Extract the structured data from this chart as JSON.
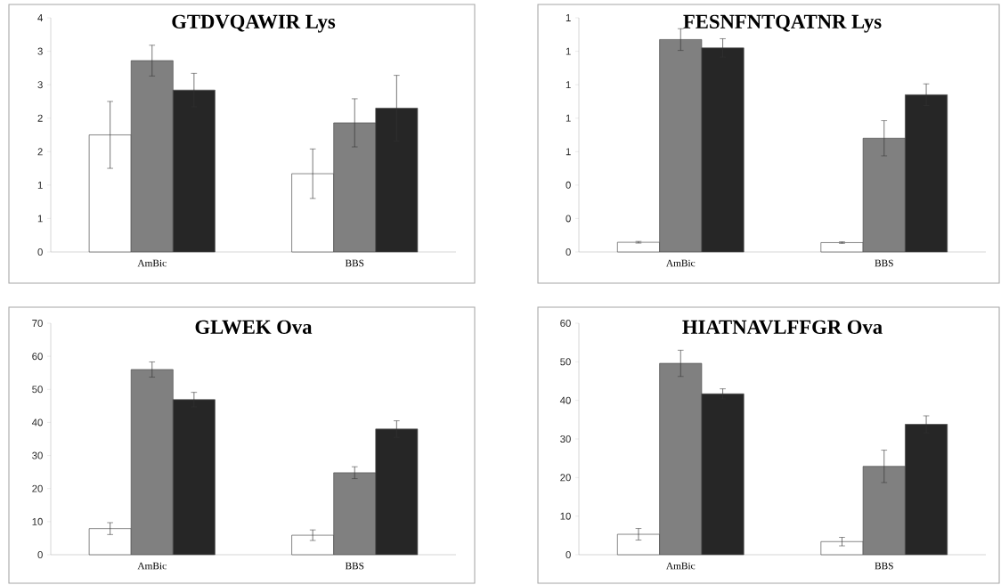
{
  "chart_data": [
    {
      "type": "bar",
      "title": "GTDVQAWIR Lys",
      "categories": [
        "AmBic",
        "BBS"
      ],
      "series": [
        {
          "color": "#ffffff",
          "values": [
            1.75,
            1.17
          ],
          "errors": [
            0.5,
            0.37
          ]
        },
        {
          "color": "#808080",
          "values": [
            2.86,
            1.93
          ],
          "errors": [
            0.23,
            0.36
          ]
        },
        {
          "color": "#262626",
          "values": [
            2.42,
            2.15
          ],
          "errors": [
            0.25,
            0.49
          ]
        }
      ],
      "ylim": [
        0,
        3.5
      ],
      "yticks": [
        0,
        {
          "value": 0.5,
          "label": "1"
        },
        1,
        {
          "value": 1.5,
          "label": "2"
        },
        2,
        {
          "value": 2.5,
          "label": "3"
        },
        3,
        {
          "value": 3.5,
          "label": "4"
        }
      ]
    },
    {
      "type": "bar",
      "title": "FESNFNTQATNR Lys",
      "categories": [
        "AmBic",
        "BBS"
      ],
      "series": [
        {
          "color": "#ffffff",
          "values": [
            0.058,
            0.056
          ],
          "errors": [
            0.005,
            0.005
          ]
        },
        {
          "color": "#808080",
          "values": [
            1.27,
            0.68
          ],
          "errors": [
            0.065,
            0.105
          ]
        },
        {
          "color": "#262626",
          "values": [
            1.22,
            0.94
          ],
          "errors": [
            0.055,
            0.065
          ]
        }
      ],
      "ylim": [
        0,
        1.4
      ],
      "yticks": [
        0,
        {
          "value": 0.2,
          "label": "0"
        },
        {
          "value": 0.4,
          "label": "0"
        },
        {
          "value": 0.6,
          "label": "1"
        },
        {
          "value": 0.8,
          "label": "1"
        },
        1,
        {
          "value": 1.2,
          "label": "1"
        },
        {
          "value": 1.4,
          "label": "1"
        }
      ]
    },
    {
      "type": "bar",
      "title": "GLWEK Ova",
      "categories": [
        "AmBic",
        "BBS"
      ],
      "series": [
        {
          "color": "#ffffff",
          "values": [
            7.9,
            5.9
          ],
          "errors": [
            1.8,
            1.6
          ]
        },
        {
          "color": "#808080",
          "values": [
            56.0,
            24.8
          ],
          "errors": [
            2.3,
            1.8
          ]
        },
        {
          "color": "#262626",
          "values": [
            46.9,
            38.0
          ],
          "errors": [
            2.2,
            2.5
          ]
        }
      ],
      "ylim": [
        0,
        70
      ],
      "yticks": [
        0,
        10,
        20,
        30,
        40,
        50,
        60,
        70
      ]
    },
    {
      "type": "bar",
      "title": "HIATNAVLFFGR Ova",
      "categories": [
        "AmBic",
        "BBS"
      ],
      "series": [
        {
          "color": "#ffffff",
          "values": [
            5.3,
            3.4
          ],
          "errors": [
            1.5,
            1.1
          ]
        },
        {
          "color": "#808080",
          "values": [
            49.6,
            22.9
          ],
          "errors": [
            3.4,
            4.2
          ]
        },
        {
          "color": "#262626",
          "values": [
            41.7,
            33.8
          ],
          "errors": [
            1.3,
            2.2
          ]
        }
      ],
      "ylim": [
        0,
        60
      ],
      "yticks": [
        0,
        10,
        20,
        30,
        40,
        50,
        60
      ]
    }
  ]
}
